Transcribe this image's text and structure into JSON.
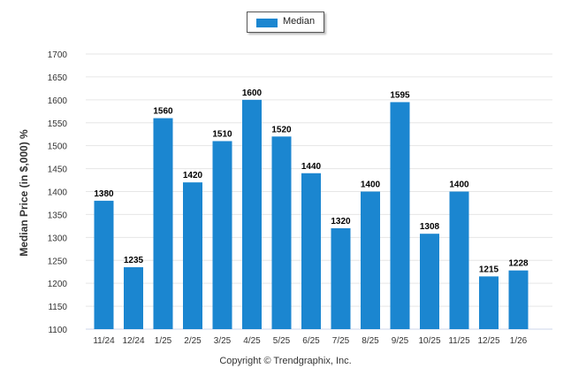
{
  "chart_data": {
    "type": "bar",
    "categories": [
      "11/24",
      "12/24",
      "1/25",
      "2/25",
      "3/25",
      "4/25",
      "5/25",
      "6/25",
      "7/25",
      "8/25",
      "9/25",
      "10/25",
      "11/25",
      "12/25",
      "1/26"
    ],
    "series": [
      {
        "name": "Median",
        "values": [
          1380,
          1235,
          1560,
          1420,
          1510,
          1600,
          1520,
          1440,
          1320,
          1400,
          1595,
          1308,
          1400,
          1215,
          1228
        ]
      }
    ],
    "ylabel": "Median Price (in $,000) %",
    "xlabel": "",
    "ylim": [
      1100,
      1700
    ],
    "yticks": [
      1100,
      1150,
      1200,
      1250,
      1300,
      1350,
      1400,
      1450,
      1500,
      1550,
      1600,
      1650,
      1700
    ],
    "grid": true,
    "legend": "top-center",
    "colors": {
      "bar": "#1b86d0",
      "grid": "#e6e6e6"
    }
  },
  "footer": {
    "copyright": "Copyright © Trendgraphix, Inc."
  }
}
